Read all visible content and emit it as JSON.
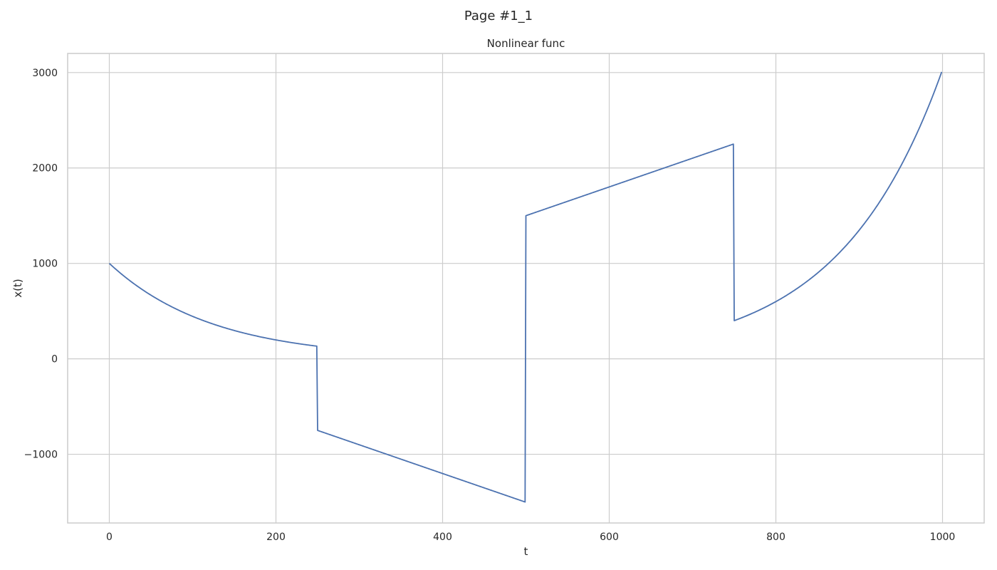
{
  "page": {
    "suptitle": "Page #1_1"
  },
  "chart_data": {
    "type": "line",
    "title": "Nonlinear func",
    "xlabel": "t",
    "ylabel": "x(t)",
    "xlim": [
      -50,
      1050
    ],
    "ylim": [
      -1720,
      3200
    ],
    "x_ticks": [
      0,
      200,
      400,
      600,
      800,
      1000
    ],
    "y_ticks": [
      -1000,
      0,
      1000,
      2000,
      3000
    ],
    "x_tick_labels": [
      "0",
      "200",
      "400",
      "600",
      "800",
      "1000"
    ],
    "y_tick_labels": [
      "−1000",
      "0",
      "1000",
      "2000",
      "3000"
    ],
    "grid": true,
    "line_color": "#4c72b0",
    "series": [
      {
        "segments": [
          {
            "kind": "exp_decay",
            "t0": 0,
            "t1": 249,
            "a": 1000,
            "rate": 0.0081
          },
          {
            "kind": "linear",
            "t0": 250,
            "t1": 499,
            "y0": -750,
            "y1": -1500
          },
          {
            "kind": "linear",
            "t0": 500,
            "t1": 749,
            "y0": 1500,
            "y1": 2250
          },
          {
            "kind": "exp_growth",
            "t0": 750,
            "t1": 999,
            "a": 400,
            "rate": 0.0081
          }
        ],
        "x": [
          0,
          25,
          50,
          75,
          100,
          125,
          150,
          175,
          200,
          225,
          249,
          250,
          300,
          350,
          400,
          450,
          499,
          500,
          550,
          600,
          650,
          700,
          749,
          750,
          775,
          800,
          825,
          850,
          875,
          900,
          925,
          950,
          975,
          999
        ],
        "values": [
          1000,
          817,
          667,
          545,
          445,
          363,
          297,
          242,
          198,
          162,
          133,
          -750,
          -900,
          -1050,
          -1200,
          -1350,
          -1500,
          1500,
          1650,
          1800,
          1950,
          2100,
          2250,
          400,
          490,
          600,
          735,
          900,
          1102,
          1350,
          1652,
          2023,
          2478,
          2960
        ]
      }
    ]
  }
}
